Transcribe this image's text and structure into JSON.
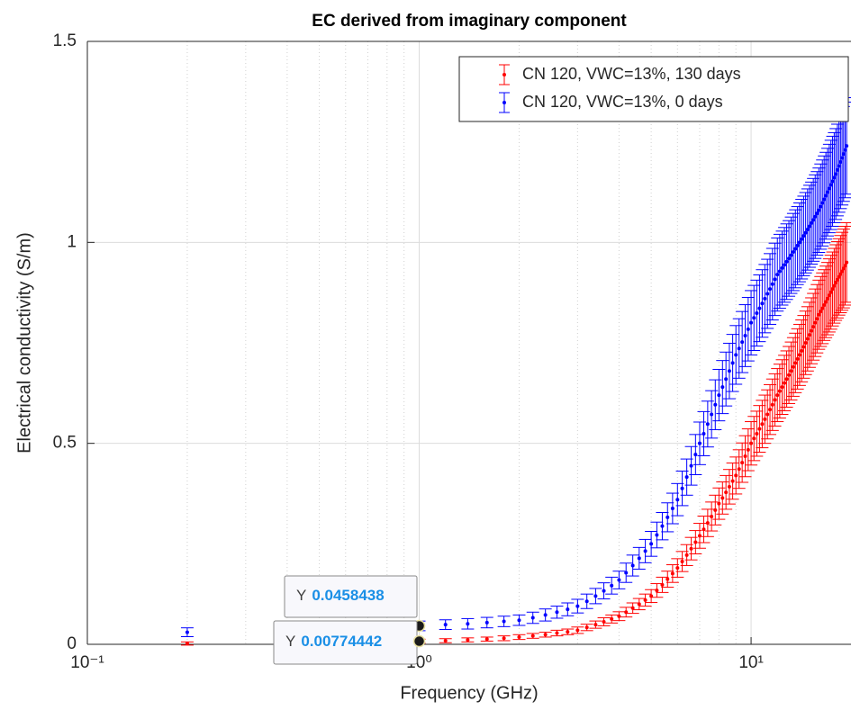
{
  "chart_data": {
    "type": "errorbar",
    "title": "EC derived from imaginary component",
    "xlabel": "Frequency (GHz)",
    "ylabel": "Electrical conductivity (S/m)",
    "xscale": "log",
    "xlim": [
      0.1,
      20
    ],
    "ylim": [
      0,
      1.5
    ],
    "xticks": [
      {
        "value": 0.1,
        "label": "10⁻¹"
      },
      {
        "value": 1,
        "label": "10⁰"
      },
      {
        "value": 10,
        "label": "10¹"
      }
    ],
    "xminorticks": [
      0.2,
      0.3,
      0.4,
      0.5,
      0.6,
      0.7,
      0.8,
      0.9,
      2,
      3,
      4,
      5,
      6,
      7,
      8,
      9
    ],
    "yticks": [
      0,
      0.5,
      1,
      1.5
    ],
    "grid": true,
    "minor_grid": true,
    "legend_position": "northeast",
    "x": [
      0.2,
      0.4,
      0.6,
      0.8,
      1.0,
      1.2,
      1.4,
      1.6,
      1.8,
      2.0,
      2.2,
      2.4,
      2.6,
      2.8,
      3.0,
      3.2,
      3.4,
      3.6,
      3.8,
      4.0,
      4.2,
      4.4,
      4.6,
      4.8,
      5.0,
      5.2,
      5.4,
      5.6,
      5.8,
      6.0,
      6.2,
      6.4,
      6.6,
      6.8,
      7.0,
      7.2,
      7.4,
      7.6,
      7.8,
      8.0,
      8.2,
      8.4,
      8.6,
      8.8,
      9.0,
      9.2,
      9.4,
      9.6,
      9.8,
      10.0,
      10.2,
      10.4,
      10.6,
      10.8,
      11.0,
      11.2,
      11.4,
      11.6,
      11.8,
      12.0,
      12.2,
      12.4,
      12.6,
      12.8,
      13.0,
      13.2,
      13.4,
      13.6,
      13.8,
      14.0,
      14.2,
      14.4,
      14.6,
      14.8,
      15.0,
      15.2,
      15.4,
      15.6,
      15.8,
      16.0,
      16.2,
      16.4,
      16.6,
      16.8,
      17.0,
      17.2,
      17.4,
      17.6,
      17.8,
      18.0,
      18.2,
      18.4,
      18.6,
      18.8,
      19.0,
      19.2,
      19.4
    ],
    "series": [
      {
        "name": "CN 120, VWC=13%, 130 days",
        "color": "#ff0000",
        "values": [
          0.002,
          0.004,
          0.005,
          0.006,
          0.00774442,
          0.009,
          0.011,
          0.013,
          0.015,
          0.018,
          0.021,
          0.024,
          0.028,
          0.031,
          0.035,
          0.042,
          0.049,
          0.056,
          0.063,
          0.07,
          0.08,
          0.09,
          0.1,
          0.11,
          0.12,
          0.134,
          0.148,
          0.162,
          0.176,
          0.19,
          0.206,
          0.222,
          0.238,
          0.254,
          0.27,
          0.286,
          0.302,
          0.318,
          0.334,
          0.35,
          0.364,
          0.378,
          0.392,
          0.406,
          0.42,
          0.436,
          0.452,
          0.468,
          0.484,
          0.5,
          0.512,
          0.524,
          0.536,
          0.548,
          0.56,
          0.572,
          0.584,
          0.596,
          0.608,
          0.62,
          0.63,
          0.64,
          0.65,
          0.66,
          0.67,
          0.68,
          0.69,
          0.7,
          0.71,
          0.72,
          0.73,
          0.74,
          0.75,
          0.76,
          0.77,
          0.78,
          0.79,
          0.8,
          0.81,
          0.82,
          0.828,
          0.836,
          0.844,
          0.852,
          0.86,
          0.868,
          0.876,
          0.884,
          0.892,
          0.9,
          0.907,
          0.914,
          0.921,
          0.928,
          0.935,
          0.942,
          0.95
        ],
        "errors": [
          0.004,
          0.004,
          0.005,
          0.005,
          0.005,
          0.005,
          0.005,
          0.005,
          0.006,
          0.006,
          0.006,
          0.006,
          0.007,
          0.007,
          0.008,
          0.008,
          0.009,
          0.01,
          0.01,
          0.011,
          0.012,
          0.013,
          0.014,
          0.015,
          0.016,
          0.017,
          0.019,
          0.02,
          0.022,
          0.023,
          0.025,
          0.026,
          0.028,
          0.029,
          0.031,
          0.033,
          0.034,
          0.036,
          0.037,
          0.039,
          0.04,
          0.042,
          0.043,
          0.045,
          0.046,
          0.048,
          0.049,
          0.051,
          0.052,
          0.054,
          0.055,
          0.056,
          0.058,
          0.059,
          0.06,
          0.061,
          0.062,
          0.064,
          0.065,
          0.066,
          0.067,
          0.068,
          0.069,
          0.07,
          0.071,
          0.072,
          0.073,
          0.074,
          0.075,
          0.076,
          0.077,
          0.078,
          0.079,
          0.08,
          0.081,
          0.082,
          0.083,
          0.084,
          0.085,
          0.086,
          0.087,
          0.088,
          0.088,
          0.089,
          0.09,
          0.091,
          0.092,
          0.092,
          0.093,
          0.094,
          0.095,
          0.095,
          0.096,
          0.097,
          0.098,
          0.098,
          0.099
        ]
      },
      {
        "name": "CN 120, VWC=13%, 0 days",
        "color": "#0000ff",
        "values": [
          0.03,
          0.036,
          0.04,
          0.043,
          0.0458438,
          0.049,
          0.051,
          0.054,
          0.057,
          0.06,
          0.066,
          0.073,
          0.08,
          0.087,
          0.095,
          0.107,
          0.12,
          0.133,
          0.146,
          0.16,
          0.178,
          0.196,
          0.214,
          0.232,
          0.25,
          0.272,
          0.294,
          0.316,
          0.338,
          0.36,
          0.388,
          0.416,
          0.444,
          0.472,
          0.5,
          0.524,
          0.548,
          0.572,
          0.596,
          0.62,
          0.64,
          0.66,
          0.68,
          0.7,
          0.72,
          0.736,
          0.752,
          0.768,
          0.784,
          0.8,
          0.812,
          0.824,
          0.836,
          0.848,
          0.86,
          0.872,
          0.884,
          0.896,
          0.908,
          0.92,
          0.928,
          0.936,
          0.944,
          0.952,
          0.96,
          0.968,
          0.976,
          0.984,
          0.992,
          1.0,
          1.008,
          1.016,
          1.024,
          1.032,
          1.04,
          1.048,
          1.056,
          1.064,
          1.072,
          1.08,
          1.089,
          1.098,
          1.107,
          1.116,
          1.125,
          1.134,
          1.143,
          1.152,
          1.161,
          1.17,
          1.18,
          1.19,
          1.2,
          1.21,
          1.22,
          1.23,
          1.24
        ],
        "errors": [
          0.011,
          0.011,
          0.012,
          0.012,
          0.012,
          0.012,
          0.013,
          0.013,
          0.013,
          0.013,
          0.014,
          0.015,
          0.015,
          0.016,
          0.017,
          0.018,
          0.019,
          0.02,
          0.021,
          0.022,
          0.024,
          0.026,
          0.027,
          0.029,
          0.031,
          0.032,
          0.034,
          0.036,
          0.038,
          0.04,
          0.043,
          0.045,
          0.048,
          0.05,
          0.053,
          0.055,
          0.057,
          0.059,
          0.062,
          0.064,
          0.066,
          0.067,
          0.069,
          0.071,
          0.073,
          0.074,
          0.076,
          0.077,
          0.079,
          0.08,
          0.081,
          0.082,
          0.083,
          0.084,
          0.085,
          0.086,
          0.088,
          0.089,
          0.09,
          0.091,
          0.092,
          0.092,
          0.093,
          0.094,
          0.094,
          0.095,
          0.096,
          0.097,
          0.097,
          0.098,
          0.099,
          0.099,
          0.1,
          0.101,
          0.102,
          0.102,
          0.103,
          0.104,
          0.104,
          0.105,
          0.106,
          0.107,
          0.108,
          0.108,
          0.109,
          0.11,
          0.111,
          0.112,
          0.112,
          0.113,
          0.114,
          0.115,
          0.116,
          0.117,
          0.118,
          0.119,
          0.12
        ]
      }
    ],
    "datatips": [
      {
        "label": "Y",
        "x": 1,
        "value": 0.0458438
      },
      {
        "label": "Y",
        "x": 1,
        "value": 0.00774442
      }
    ]
  }
}
